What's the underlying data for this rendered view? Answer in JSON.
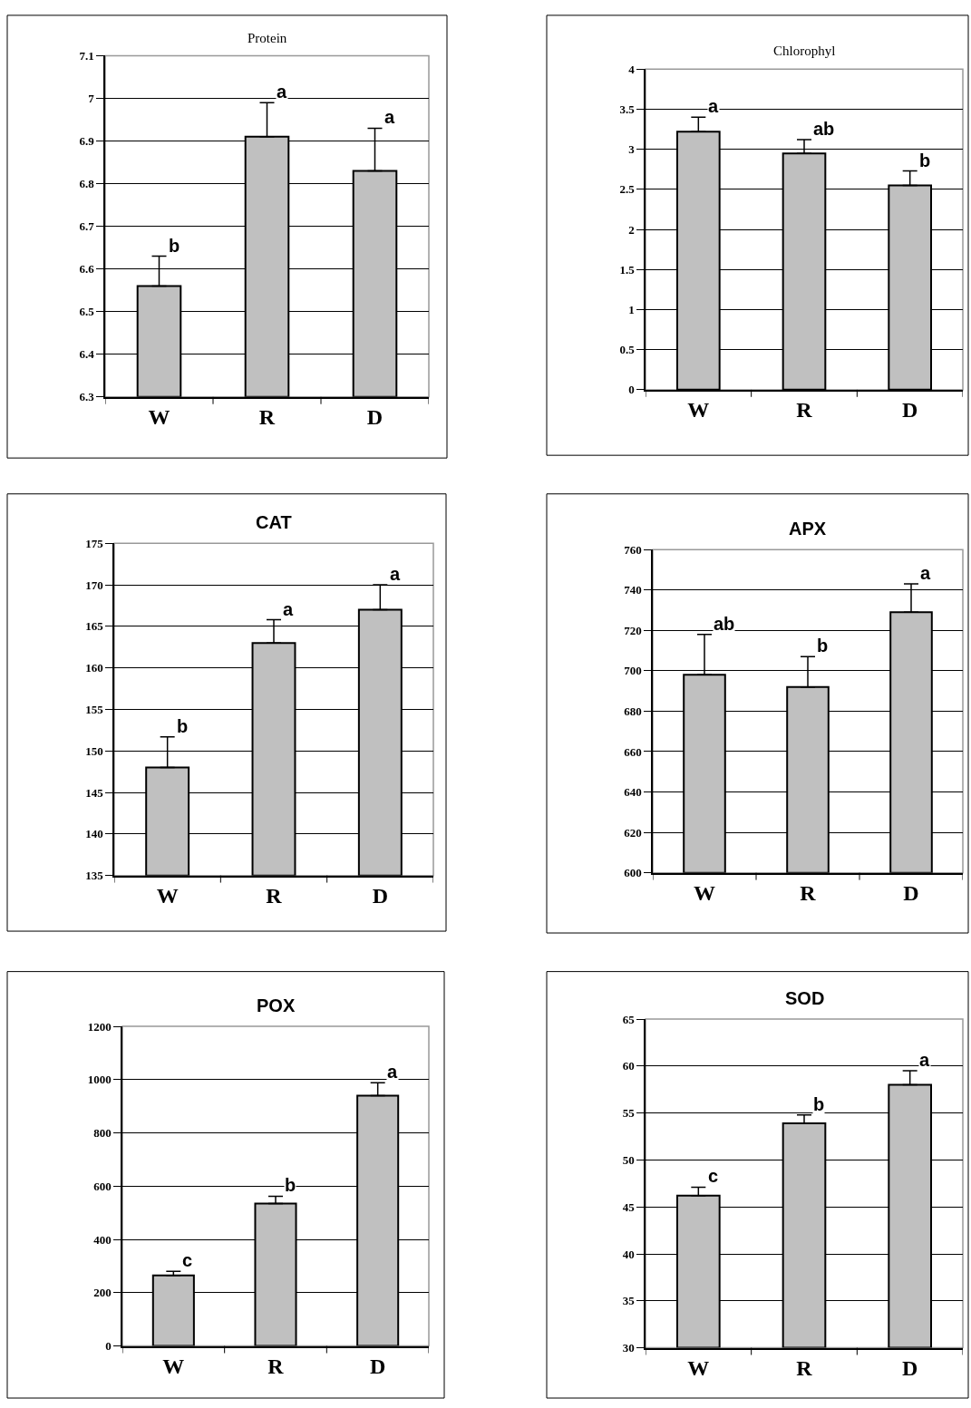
{
  "chart_data": [
    {
      "type": "bar",
      "title": "Protein",
      "categories": [
        "W",
        "R",
        "D"
      ],
      "values": [
        6.56,
        6.91,
        6.83
      ],
      "color": "#c0c0c0",
      "errors": [
        [
          6.56,
          6.63
        ],
        [
          6.91,
          6.99
        ],
        [
          6.83,
          6.93
        ]
      ],
      "ylim": [
        6.3,
        7.1
      ],
      "yticks": [
        6.3,
        6.4,
        6.5,
        6.6,
        6.7,
        6.8,
        6.9,
        7,
        7.1
      ],
      "grid": "y",
      "annotations": [
        {
          "text": "b",
          "x": "W",
          "y": 6.63
        },
        {
          "text": "a",
          "x": "R",
          "y": 6.99
        },
        {
          "text": "a",
          "x": "D",
          "y": 6.93
        }
      ]
    },
    {
      "type": "bar",
      "title": "Chlorophyl",
      "categories": [
        "W",
        "R",
        "D"
      ],
      "values": [
        3.22,
        2.95,
        2.55
      ],
      "color": "#c0c0c0",
      "errors": [
        [
          3.22,
          3.4
        ],
        [
          2.95,
          3.12
        ],
        [
          2.55,
          2.73
        ]
      ],
      "ylim": [
        0,
        4
      ],
      "yticks": [
        0,
        0.5,
        1,
        1.5,
        2,
        2.5,
        3,
        3.5,
        4
      ],
      "grid": "y",
      "annotations": [
        {
          "text": "a",
          "x": "W",
          "y": 3.4
        },
        {
          "text": "ab",
          "x": "R",
          "y": 3.12
        },
        {
          "text": "b",
          "x": "D",
          "y": 2.73
        }
      ]
    },
    {
      "type": "bar",
      "title": "CAT",
      "categories": [
        "W",
        "R",
        "D"
      ],
      "values": [
        148,
        163,
        167
      ],
      "color": "#c0c0c0",
      "errors": [
        [
          148,
          151.7
        ],
        [
          163,
          165.8
        ],
        [
          167,
          170
        ]
      ],
      "ylim": [
        135,
        175
      ],
      "yticks": [
        135,
        140,
        145,
        150,
        155,
        160,
        165,
        170,
        175
      ],
      "grid": "y",
      "annotations": [
        {
          "text": "b",
          "x": "W",
          "y": 151.7
        },
        {
          "text": "a",
          "x": "R",
          "y": 165.8
        },
        {
          "text": "a",
          "x": "D",
          "y": 170
        }
      ]
    },
    {
      "type": "bar",
      "title": "APX",
      "categories": [
        "W",
        "R",
        "D"
      ],
      "values": [
        698,
        692,
        729
      ],
      "color": "#c0c0c0",
      "errors": [
        [
          698,
          718
        ],
        [
          692,
          707
        ],
        [
          729,
          743
        ]
      ],
      "ylim": [
        600,
        760
      ],
      "yticks": [
        600,
        620,
        640,
        660,
        680,
        700,
        720,
        740,
        760
      ],
      "grid": "y",
      "annotations": [
        {
          "text": "ab",
          "x": "W",
          "y": 718
        },
        {
          "text": "b",
          "x": "R",
          "y": 707
        },
        {
          "text": "a",
          "x": "D",
          "y": 743
        }
      ]
    },
    {
      "type": "bar",
      "title": "POX",
      "categories": [
        "W",
        "R",
        "D"
      ],
      "values": [
        265,
        535,
        940
      ],
      "color": "#c0c0c0",
      "errors": [
        [
          265,
          280
        ],
        [
          535,
          562
        ],
        [
          940,
          988
        ]
      ],
      "ylim": [
        0,
        1200
      ],
      "yticks": [
        0,
        200,
        400,
        600,
        800,
        1000,
        1200
      ],
      "grid": "y",
      "annotations": [
        {
          "text": "c",
          "x": "W",
          "y": 280
        },
        {
          "text": "b",
          "x": "R",
          "y": 562
        },
        {
          "text": "a",
          "x": "D",
          "y": 988
        }
      ]
    },
    {
      "type": "bar",
      "title": "SOD",
      "categories": [
        "W",
        "R",
        "D"
      ],
      "values": [
        46.2,
        53.9,
        58
      ],
      "color": "#c0c0c0",
      "errors": [
        [
          46.2,
          47.1
        ],
        [
          53.9,
          54.8
        ],
        [
          58,
          59.5
        ]
      ],
      "ylim": [
        30,
        65
      ],
      "yticks": [
        30,
        35,
        40,
        45,
        50,
        55,
        60,
        65
      ],
      "grid": "y",
      "annotations": [
        {
          "text": "c",
          "x": "W",
          "y": 47.1
        },
        {
          "text": "b",
          "x": "R",
          "y": 54.8
        },
        {
          "text": "a",
          "x": "D",
          "y": 59.5
        }
      ]
    }
  ]
}
